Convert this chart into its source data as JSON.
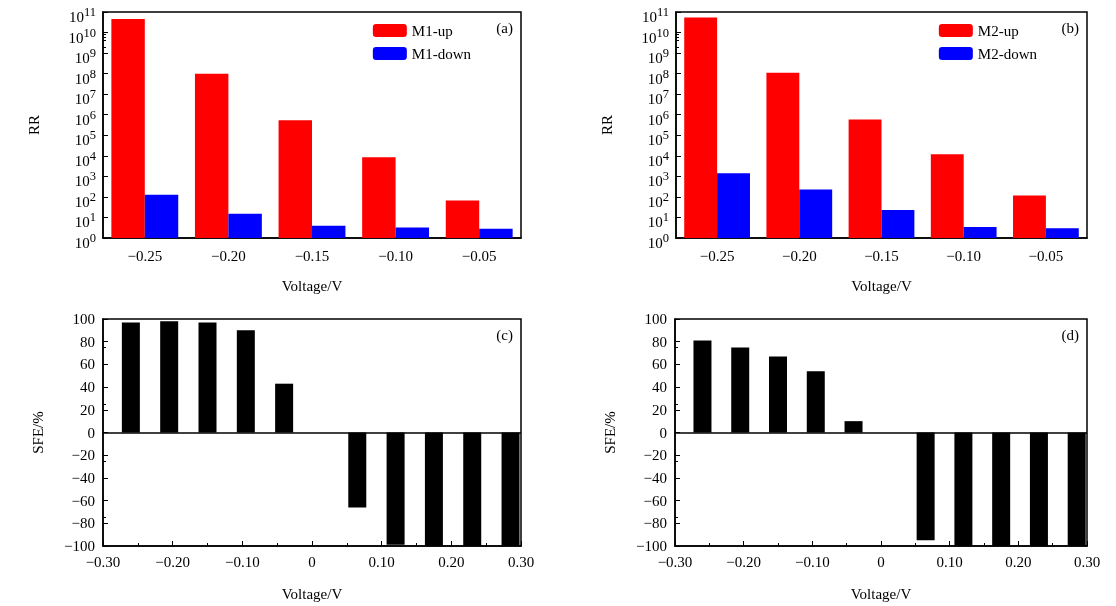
{
  "chart_data": [
    {
      "type": "bar",
      "xlabel": "Voltage/V",
      "ylabel": "RR",
      "categories": [
        "−0.25",
        "−0.20",
        "−0.15",
        "−0.10",
        "−0.05"
      ],
      "log": true,
      "ylim": [
        1,
        100000000000
      ],
      "yticks": [
        {
          "value": 1,
          "label": "10$^{0}$"
        },
        {
          "value": 10,
          "label": "10$^{1}$"
        },
        {
          "value": 100,
          "label": "10$^{2}$"
        },
        {
          "value": 1000,
          "label": "10$^{3}$"
        },
        {
          "value": 10000,
          "label": "10$^{4}$"
        },
        {
          "value": 100000,
          "label": "10$^{5}$"
        },
        {
          "value": 1000000,
          "label": "10$^{6}$"
        },
        {
          "value": 10000000,
          "label": "10$^{7}$"
        },
        {
          "value": 100000000,
          "label": "10$^{8}$"
        },
        {
          "value": 1000000000,
          "label": "10$^{9}$"
        },
        {
          "value": 10000000000,
          "label": "10$^{10}$"
        },
        {
          "value": 100000000000,
          "label": "10$^{11}$"
        }
      ],
      "legend": "top right",
      "annotations": [
        "(a)"
      ],
      "series": [
        {
          "name": "M1-up",
          "color": "#ff0000",
          "values": [
            46000000000,
            100000000,
            540000,
            8500,
            66
          ]
        },
        {
          "name": "M1-down",
          "color": "#0000ff",
          "values": [
            126,
            15,
            4,
            3.2,
            2.8
          ]
        }
      ]
    },
    {
      "type": "bar",
      "xlabel": "Voltage/V",
      "ylabel": "RR",
      "categories": [
        "−0.25",
        "−0.20",
        "−0.15",
        "−0.10",
        "−0.05"
      ],
      "log": true,
      "ylim": [
        1,
        100000000000
      ],
      "yticks": [
        {
          "value": 1,
          "label": "10$^{0}$"
        },
        {
          "value": 10,
          "label": "10$^{1}$"
        },
        {
          "value": 100,
          "label": "10$^{2}$"
        },
        {
          "value": 1000,
          "label": "10$^{3}$"
        },
        {
          "value": 10000,
          "label": "10$^{4}$"
        },
        {
          "value": 100000,
          "label": "10$^{5}$"
        },
        {
          "value": 1000000,
          "label": "10$^{6}$"
        },
        {
          "value": 10000000,
          "label": "10$^{7}$"
        },
        {
          "value": 100000000,
          "label": "10$^{8}$"
        },
        {
          "value": 1000000000,
          "label": "10$^{9}$"
        },
        {
          "value": 10000000000,
          "label": "10$^{10}$"
        },
        {
          "value": 100000000000,
          "label": "10$^{11}$"
        }
      ],
      "legend": "top right",
      "annotations": [
        "(b)"
      ],
      "series": [
        {
          "name": "M2-up",
          "color": "#ff0000",
          "values": [
            54000000000,
            110000000,
            580000,
            12000,
            117
          ]
        },
        {
          "name": "M2-down",
          "color": "#0000ff",
          "values": [
            1400,
            230,
            23,
            3.4,
            3.0
          ]
        }
      ]
    },
    {
      "type": "bar",
      "xlabel": "Voltage/V",
      "ylabel": "SFE/%",
      "x": [
        -0.26,
        -0.205,
        -0.15,
        -0.095,
        -0.04,
        0.065,
        0.12,
        0.175,
        0.23,
        0.285
      ],
      "xlim": [
        -0.3,
        0.3
      ],
      "xticks": [
        {
          "value": -0.3,
          "label": "−0.30"
        },
        {
          "value": -0.2,
          "label": "−0.20"
        },
        {
          "value": -0.1,
          "label": "−0.10"
        },
        0,
        {
          "value": 0.1,
          "label": "0.10"
        },
        {
          "value": 0.2,
          "label": "0.20"
        },
        {
          "value": 0.3,
          "label": "0.30"
        }
      ],
      "ylim": [
        -100,
        100
      ],
      "yticks": [
        {
          "value": -100,
          "label": "−100"
        },
        {
          "value": -80,
          "label": "−80"
        },
        {
          "value": -60,
          "label": "−60"
        },
        {
          "value": -40,
          "label": "−40"
        },
        {
          "value": -20,
          "label": "−20"
        },
        0,
        20,
        40,
        60,
        80,
        100
      ],
      "annotations": [
        "(c)"
      ],
      "ref_lines": [
        {
          "axis": "y",
          "value": 0,
          "color": "#000000"
        }
      ],
      "series": [
        {
          "color": "#000000",
          "values": [
            97,
            98,
            97,
            90,
            43,
            -66,
            -99,
            -100,
            -100,
            -100
          ]
        }
      ]
    },
    {
      "type": "bar",
      "xlabel": "Voltage/V",
      "ylabel": "SFE/%",
      "x": [
        -0.26,
        -0.205,
        -0.15,
        -0.095,
        -0.04,
        0.065,
        0.12,
        0.175,
        0.23,
        0.285
      ],
      "xlim": [
        -0.3,
        0.3
      ],
      "xticks": [
        {
          "value": -0.3,
          "label": "−0.30"
        },
        {
          "value": -0.2,
          "label": "−0.20"
        },
        {
          "value": -0.1,
          "label": "−0.10"
        },
        0,
        {
          "value": 0.1,
          "label": "0.10"
        },
        {
          "value": 0.2,
          "label": "0.20"
        },
        {
          "value": 0.3,
          "label": "0.30"
        }
      ],
      "ylim": [
        -100,
        100
      ],
      "yticks": [
        {
          "value": -100,
          "label": "−100"
        },
        {
          "value": -80,
          "label": "−80"
        },
        {
          "value": -60,
          "label": "−60"
        },
        {
          "value": -40,
          "label": "−40"
        },
        {
          "value": -20,
          "label": "−20"
        },
        0,
        20,
        40,
        60,
        80,
        100
      ],
      "annotations": [
        "(d)"
      ],
      "ref_lines": [
        {
          "axis": "y",
          "value": 0,
          "color": "#000000"
        }
      ],
      "series": [
        {
          "color": "#000000",
          "values": [
            81,
            75,
            67,
            54,
            10,
            -95,
            -100,
            -100,
            -100,
            -100
          ]
        }
      ]
    }
  ]
}
